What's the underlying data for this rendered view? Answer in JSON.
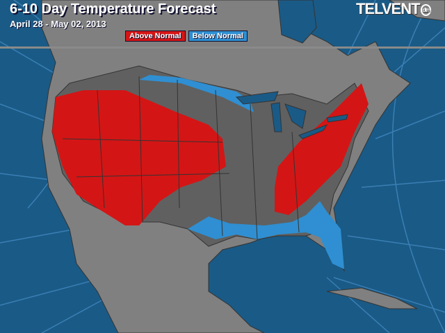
{
  "header": {
    "title": "6-10 Day Temperature Forecast",
    "date_range": "April 28 - May 02, 2013"
  },
  "legend": [
    {
      "label": "Above Normal",
      "color": "#d41515"
    },
    {
      "label": "Below Normal",
      "color": "#2f8fd2"
    }
  ],
  "logo": {
    "text": "TELVENT",
    "badge": "dtn"
  },
  "colors": {
    "ocean": "#1a5a86",
    "land": "#808080",
    "us_land": "#606060",
    "above_normal": "#d41515",
    "below_normal": "#2f8fd2",
    "grid": "#3a7fb5"
  }
}
